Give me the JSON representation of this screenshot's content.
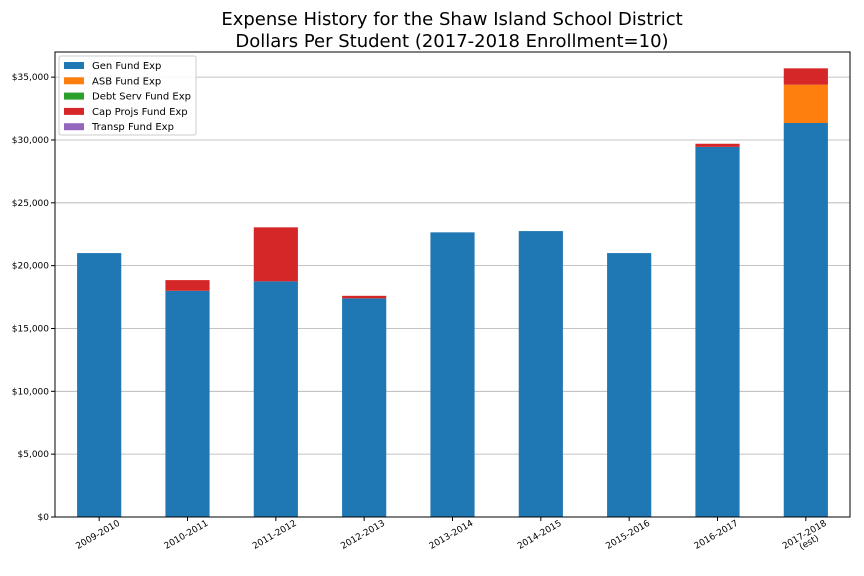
{
  "chart_data": {
    "type": "bar",
    "stacked": true,
    "title": "Expense History for the Shaw Island School District",
    "subtitle": "Dollars Per Student (2017-2018 Enrollment=10)",
    "xlabel": "",
    "ylabel": "",
    "categories": [
      "2009-2010",
      "2010-2011",
      "2011-2012",
      "2012-2013",
      "2013-2014",
      "2014-2015",
      "2015-2016",
      "2016-2017",
      "2017-2018\n(est)"
    ],
    "ylim": [
      0,
      37000
    ],
    "yticks": [
      0,
      5000,
      10000,
      15000,
      20000,
      25000,
      30000,
      35000
    ],
    "ytick_labels": [
      "$0",
      "$5,000",
      "$10,000",
      "$15,000",
      "$20,000",
      "$25,000",
      "$30,000",
      "$35,000"
    ],
    "grid": "horizontal",
    "legend_position": "top-left",
    "series": [
      {
        "name": "Gen Fund Exp",
        "color": "#1f77b4",
        "values": [
          21000,
          18000,
          18750,
          17400,
          22650,
          22750,
          21000,
          29450,
          31350
        ]
      },
      {
        "name": "ASB Fund Exp",
        "color": "#ff7f0e",
        "values": [
          0,
          0,
          0,
          0,
          0,
          0,
          0,
          0,
          3050
        ]
      },
      {
        "name": "Debt Serv Fund Exp",
        "color": "#2ca02c",
        "values": [
          0,
          0,
          0,
          0,
          0,
          0,
          0,
          0,
          0
        ]
      },
      {
        "name": "Cap Projs Fund Exp",
        "color": "#d62728",
        "values": [
          0,
          850,
          4300,
          200,
          0,
          0,
          0,
          250,
          1300
        ]
      },
      {
        "name": "Transp Fund Exp",
        "color": "#9467bd",
        "values": [
          0,
          0,
          0,
          0,
          0,
          0,
          0,
          0,
          0
        ]
      }
    ]
  }
}
